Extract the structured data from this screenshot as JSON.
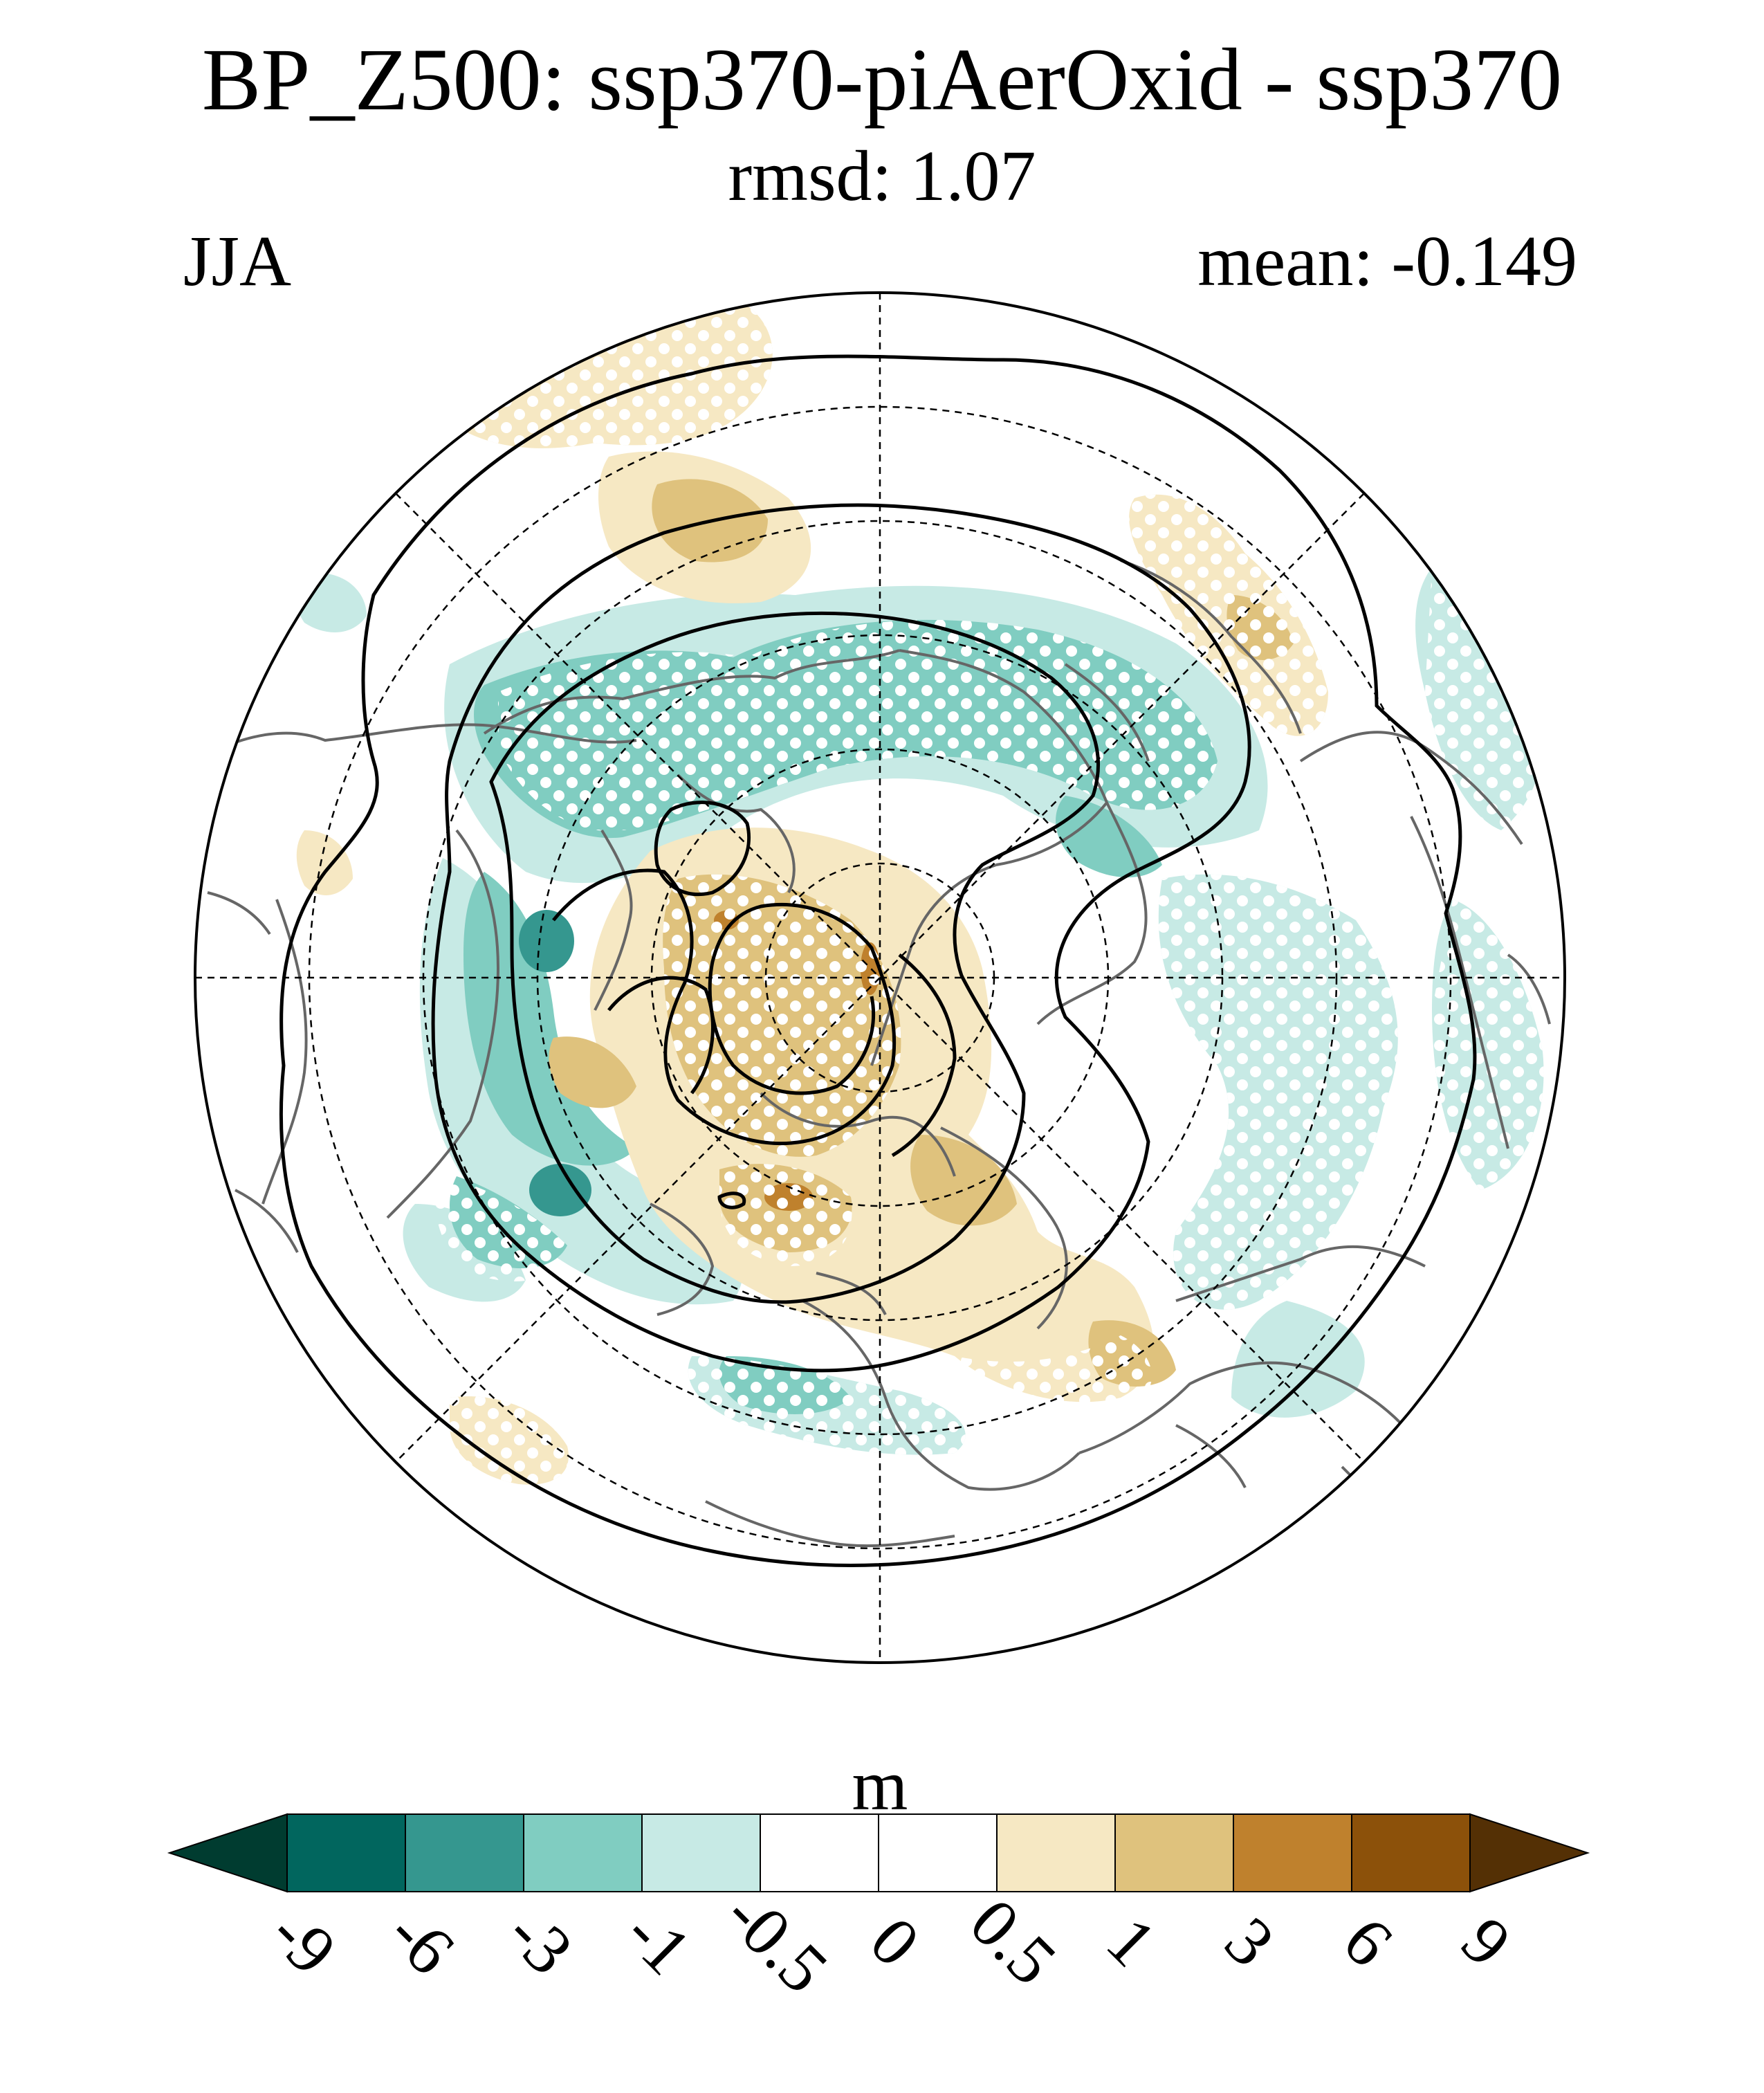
{
  "title": "BP_Z500: ssp370-piAerOxid - ssp370",
  "subtitle": "rmsd: 1.07",
  "season": "JJA",
  "mean_label": "mean: -0.149",
  "colorbar": {
    "units": "m",
    "levels": [
      "-9",
      "-6",
      "-3",
      "-1",
      "-0.5",
      "0",
      "0.5",
      "1",
      "3",
      "6",
      "9"
    ],
    "colors": [
      "#003c30",
      "#01665e",
      "#35978f",
      "#80cdc1",
      "#c7eae5",
      "#ffffff",
      "#ffffff",
      "#f6e8c3",
      "#dfc27d",
      "#bf812d",
      "#8c510a",
      "#543005"
    ]
  },
  "map": {
    "projection": "north-polar-stereographic",
    "stippling": "white dots mark significant regions",
    "contours": "black lines: climatological Z500",
    "land_outline_color": "#666666"
  }
}
